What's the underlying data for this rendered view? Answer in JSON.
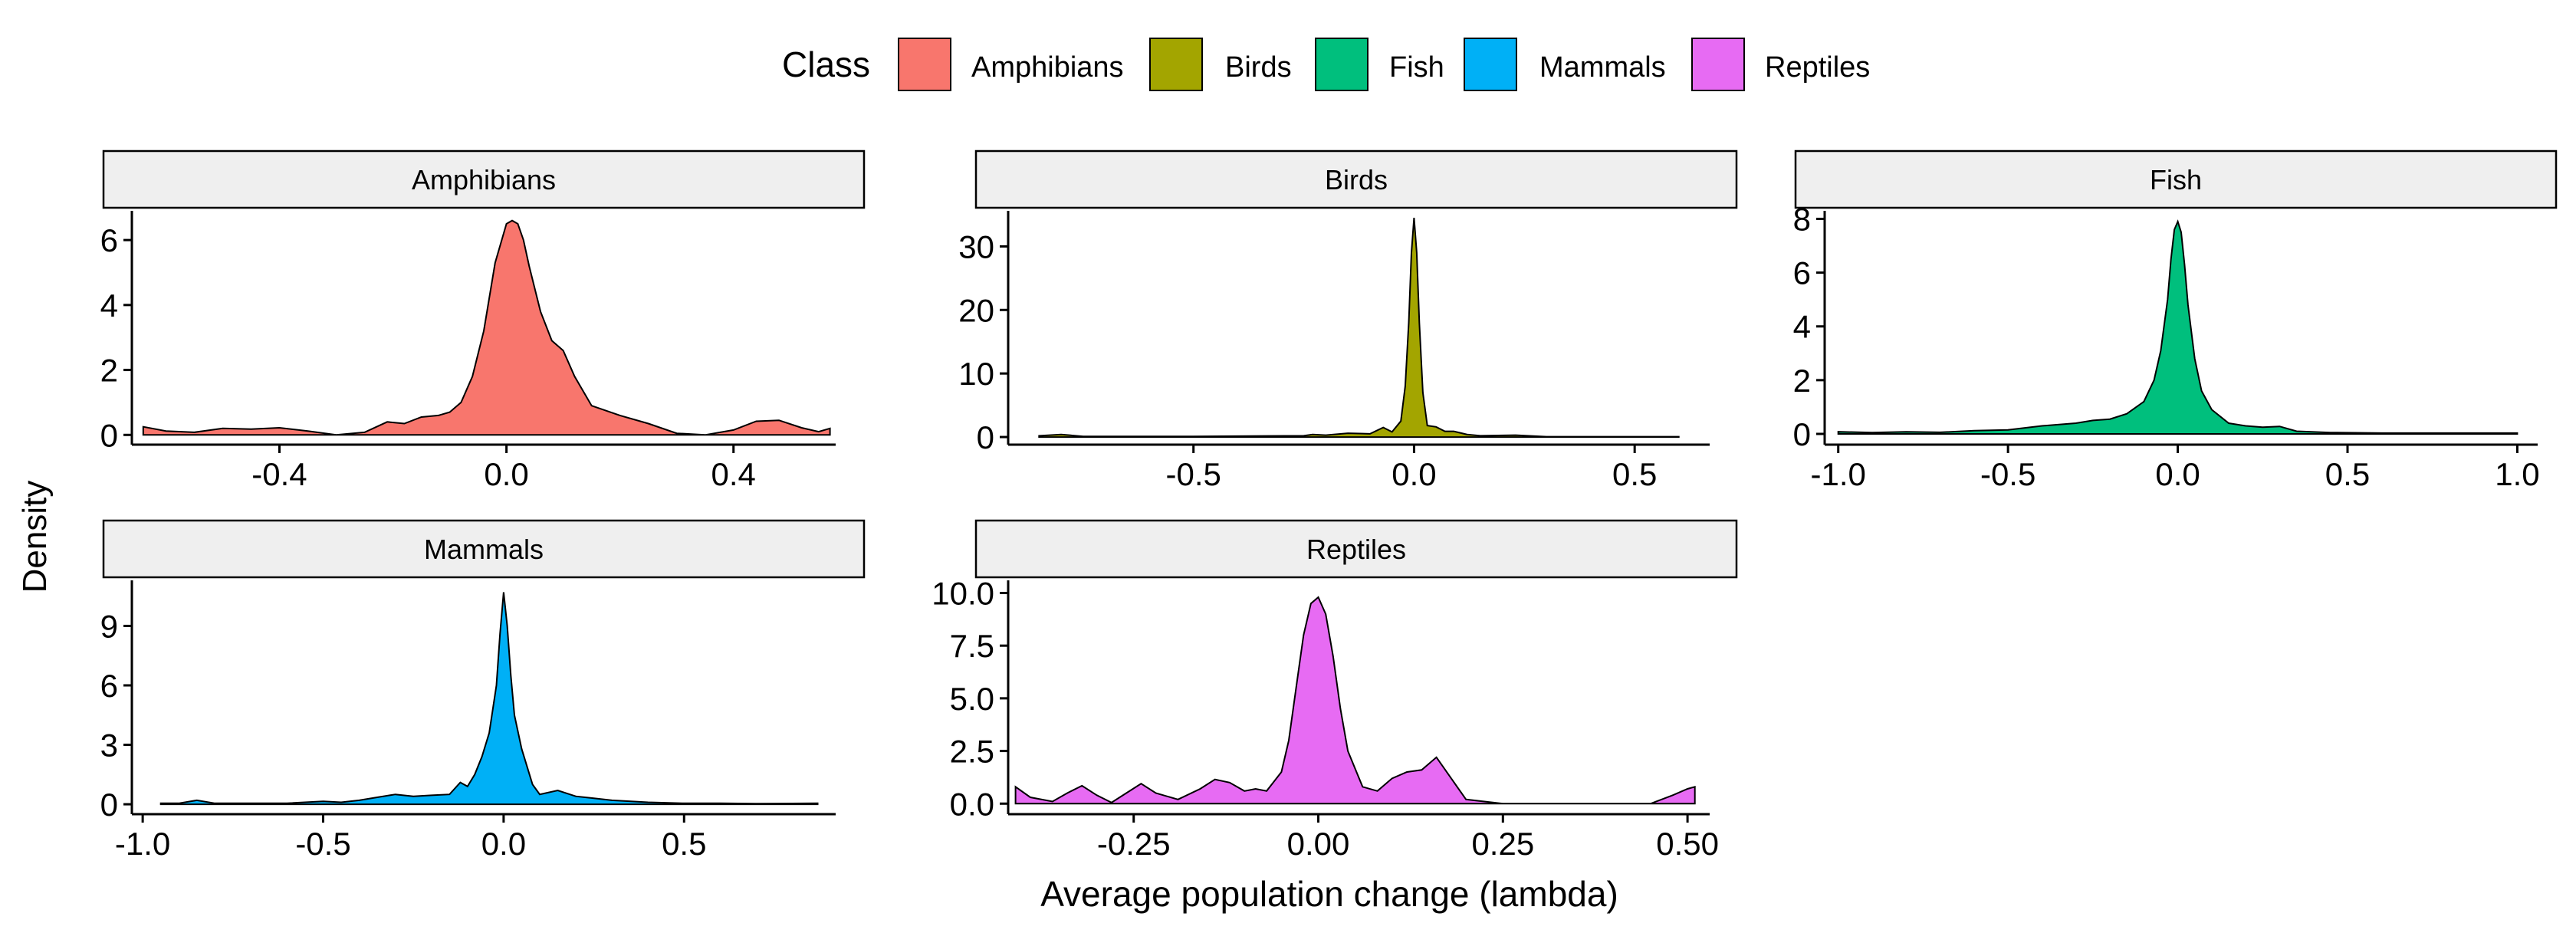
{
  "chart_data": {
    "type": "area",
    "legend": {
      "title": "Class",
      "placement": "top",
      "entries": [
        {
          "label": "Amphibians",
          "color": "#f8766d"
        },
        {
          "label": "Birds",
          "color": "#a3a500"
        },
        {
          "label": "Fish",
          "color": "#00bf7d"
        },
        {
          "label": "Mammals",
          "color": "#00b0f6"
        },
        {
          "label": "Reptiles",
          "color": "#e76bf3"
        }
      ]
    },
    "xlabel": "Average population change (lambda)",
    "ylabel": "Density",
    "grid": false,
    "facets": [
      {
        "name": "Amphibians",
        "color": "#f8766d",
        "xlim": [
          -0.66,
          0.58
        ],
        "ylim": [
          -0.3,
          6.9
        ],
        "x_ticks": [
          -0.4,
          0.0,
          0.4
        ],
        "x_tick_labels": [
          "-0.4",
          "0.0",
          "0.4"
        ],
        "y_ticks": [
          0,
          2,
          4,
          6
        ],
        "y_tick_labels": [
          "0",
          "2",
          "4",
          "6"
        ],
        "x": [
          -0.64,
          -0.6,
          -0.55,
          -0.5,
          -0.45,
          -0.4,
          -0.35,
          -0.3,
          -0.25,
          -0.21,
          -0.18,
          -0.15,
          -0.12,
          -0.1,
          -0.08,
          -0.06,
          -0.04,
          -0.02,
          0.0,
          0.01,
          0.02,
          0.03,
          0.04,
          0.06,
          0.08,
          0.1,
          0.12,
          0.15,
          0.2,
          0.25,
          0.3,
          0.35,
          0.4,
          0.44,
          0.48,
          0.52,
          0.55,
          0.57
        ],
        "y": [
          0.25,
          0.12,
          0.08,
          0.2,
          0.18,
          0.22,
          0.12,
          0.0,
          0.08,
          0.4,
          0.35,
          0.55,
          0.6,
          0.7,
          1.0,
          1.8,
          3.2,
          5.3,
          6.5,
          6.6,
          6.5,
          6.0,
          5.2,
          3.8,
          2.9,
          2.6,
          1.8,
          0.9,
          0.6,
          0.35,
          0.05,
          0.0,
          0.15,
          0.42,
          0.45,
          0.22,
          0.1,
          0.2
        ]
      },
      {
        "name": "Birds",
        "color": "#a3a500",
        "xlim": [
          -0.92,
          0.67
        ],
        "ylim": [
          -1.2,
          35.6
        ],
        "x_ticks": [
          -0.5,
          0.0,
          0.5
        ],
        "x_tick_labels": [
          "-0.5",
          "0.0",
          "0.5"
        ],
        "y_ticks": [
          0,
          10,
          20,
          30
        ],
        "y_tick_labels": [
          "0",
          "10",
          "20",
          "30"
        ],
        "x": [
          -0.85,
          -0.8,
          -0.75,
          -0.5,
          -0.25,
          -0.23,
          -0.2,
          -0.15,
          -0.1,
          -0.07,
          -0.05,
          -0.03,
          -0.02,
          -0.012,
          -0.006,
          0.0,
          0.006,
          0.012,
          0.02,
          0.03,
          0.05,
          0.07,
          0.09,
          0.12,
          0.15,
          0.23,
          0.3,
          0.5,
          0.6
        ],
        "y": [
          0.2,
          0.4,
          0.1,
          0.1,
          0.2,
          0.4,
          0.3,
          0.6,
          0.5,
          1.5,
          0.8,
          2.5,
          8.0,
          18.0,
          29.0,
          34.5,
          29.0,
          18.0,
          7.0,
          1.8,
          1.6,
          0.9,
          0.9,
          0.4,
          0.2,
          0.3,
          0.05,
          0.05,
          0.05
        ]
      },
      {
        "name": "Fish",
        "color": "#00bf7d",
        "xlim": [
          -1.04,
          1.06
        ],
        "ylim": [
          -0.4,
          8.3
        ],
        "x_ticks": [
          -1.0,
          -0.5,
          0.0,
          0.5,
          1.0
        ],
        "x_tick_labels": [
          "-1.0",
          "-0.5",
          "0.0",
          "0.5",
          "1.0"
        ],
        "y_ticks": [
          0,
          2,
          4,
          6,
          8
        ],
        "y_tick_labels": [
          "0",
          "2",
          "4",
          "6",
          "8"
        ],
        "x": [
          -1.0,
          -0.9,
          -0.8,
          -0.7,
          -0.6,
          -0.5,
          -0.4,
          -0.3,
          -0.25,
          -0.2,
          -0.15,
          -0.1,
          -0.07,
          -0.05,
          -0.03,
          -0.02,
          -0.01,
          0.0,
          0.01,
          0.02,
          0.03,
          0.05,
          0.07,
          0.1,
          0.15,
          0.2,
          0.25,
          0.3,
          0.35,
          0.45,
          0.6,
          0.8,
          1.0
        ],
        "y": [
          0.08,
          0.05,
          0.08,
          0.06,
          0.12,
          0.15,
          0.3,
          0.4,
          0.5,
          0.55,
          0.75,
          1.2,
          2.0,
          3.1,
          5.0,
          6.5,
          7.6,
          7.9,
          7.5,
          6.3,
          4.8,
          2.8,
          1.6,
          0.9,
          0.4,
          0.3,
          0.25,
          0.28,
          0.1,
          0.05,
          0.03,
          0.03,
          0.03
        ]
      },
      {
        "name": "Mammals",
        "color": "#00b0f6",
        "xlim": [
          -1.03,
          0.92
        ],
        "ylim": [
          -0.5,
          11.3
        ],
        "x_ticks": [
          -1.0,
          -0.5,
          0.0,
          0.5
        ],
        "x_tick_labels": [
          "-1.0",
          "-0.5",
          "0.0",
          "0.5"
        ],
        "y_ticks": [
          0,
          3,
          6,
          9
        ],
        "y_tick_labels": [
          "0",
          "3",
          "6",
          "9"
        ],
        "x": [
          -0.95,
          -0.9,
          -0.85,
          -0.8,
          -0.7,
          -0.6,
          -0.5,
          -0.45,
          -0.4,
          -0.35,
          -0.3,
          -0.25,
          -0.2,
          -0.15,
          -0.12,
          -0.1,
          -0.08,
          -0.06,
          -0.04,
          -0.02,
          -0.01,
          0.0,
          0.01,
          0.02,
          0.03,
          0.05,
          0.08,
          0.1,
          0.15,
          0.2,
          0.25,
          0.3,
          0.4,
          0.5,
          0.6,
          0.7,
          0.87
        ],
        "y": [
          0.05,
          0.05,
          0.2,
          0.05,
          0.05,
          0.05,
          0.15,
          0.1,
          0.2,
          0.35,
          0.5,
          0.4,
          0.45,
          0.5,
          1.1,
          0.9,
          1.5,
          2.4,
          3.6,
          6.0,
          8.6,
          10.7,
          9.0,
          6.5,
          4.5,
          2.8,
          1.0,
          0.5,
          0.7,
          0.4,
          0.3,
          0.2,
          0.1,
          0.05,
          0.05,
          0.03,
          0.05
        ]
      },
      {
        "name": "Reptiles",
        "color": "#e76bf3",
        "xlim": [
          -0.42,
          0.53
        ],
        "ylim": [
          -0.5,
          10.6
        ],
        "x_ticks": [
          -0.25,
          0.0,
          0.25,
          0.5
        ],
        "x_tick_labels": [
          "-0.25",
          "0.00",
          "0.25",
          "0.50"
        ],
        "y_ticks": [
          0.0,
          2.5,
          5.0,
          7.5,
          10.0
        ],
        "y_tick_labels": [
          "0.0",
          "2.5",
          "5.0",
          "7.5",
          "10.0"
        ],
        "x": [
          -0.41,
          -0.39,
          -0.36,
          -0.34,
          -0.32,
          -0.3,
          -0.28,
          -0.26,
          -0.24,
          -0.22,
          -0.19,
          -0.16,
          -0.14,
          -0.12,
          -0.1,
          -0.085,
          -0.07,
          -0.05,
          -0.04,
          -0.03,
          -0.02,
          -0.01,
          0.0,
          0.01,
          0.02,
          0.03,
          0.04,
          0.06,
          0.08,
          0.1,
          0.12,
          0.14,
          0.16,
          0.18,
          0.2,
          0.25,
          0.3,
          0.35,
          0.4,
          0.45,
          0.48,
          0.5,
          0.51
        ],
        "y": [
          0.8,
          0.3,
          0.1,
          0.5,
          0.85,
          0.4,
          0.05,
          0.5,
          0.95,
          0.5,
          0.2,
          0.7,
          1.15,
          1.0,
          0.6,
          0.7,
          0.6,
          1.5,
          3.0,
          5.5,
          8.0,
          9.5,
          9.8,
          9.0,
          7.0,
          4.5,
          2.5,
          0.8,
          0.6,
          1.2,
          1.5,
          1.6,
          2.2,
          1.2,
          0.2,
          0.0,
          0.0,
          0.0,
          0.0,
          0.0,
          0.4,
          0.7,
          0.8
        ]
      }
    ]
  }
}
